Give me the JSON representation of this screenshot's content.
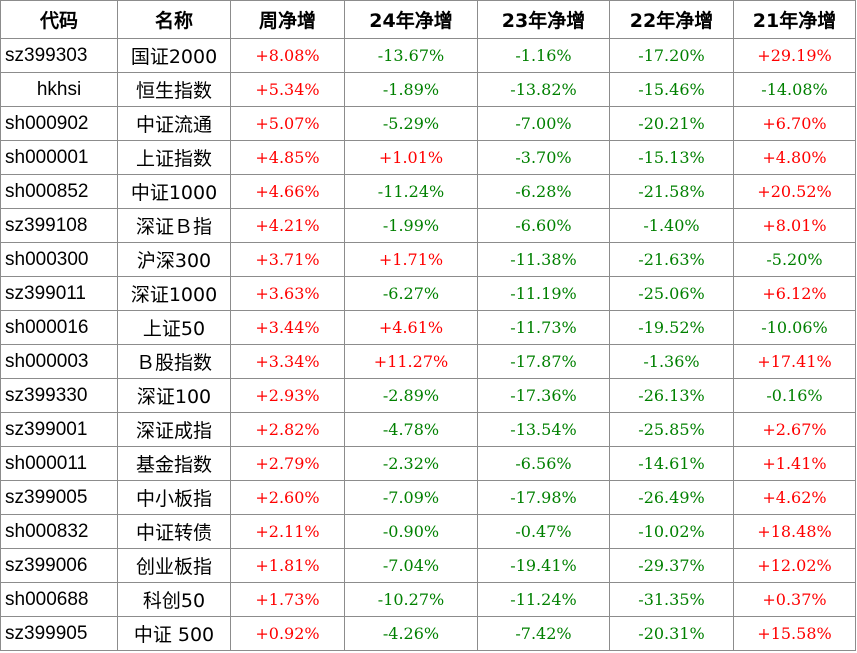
{
  "headers": [
    "代码",
    "名称",
    "周净增",
    "24年净增",
    "23年净增",
    "22年净增",
    "21年净增"
  ],
  "colors": {
    "positive": "#ff0000",
    "negative": "#008000"
  },
  "rows": [
    {
      "code": "sz399303",
      "name": "国证2000",
      "week": "+8.08%",
      "y24": "-13.67%",
      "y23": "-1.16%",
      "y22": "-17.20%",
      "y21": "+29.19%"
    },
    {
      "code": "hkhsi",
      "name": "恒生指数",
      "week": "+5.34%",
      "y24": "-1.89%",
      "y23": "-13.82%",
      "y22": "-15.46%",
      "y21": "-14.08%"
    },
    {
      "code": "sh000902",
      "name": "中证流通",
      "week": "+5.07%",
      "y24": "-5.29%",
      "y23": "-7.00%",
      "y22": "-20.21%",
      "y21": "+6.70%"
    },
    {
      "code": "sh000001",
      "name": "上证指数",
      "week": "+4.85%",
      "y24": "+1.01%",
      "y23": "-3.70%",
      "y22": "-15.13%",
      "y21": "+4.80%"
    },
    {
      "code": "sh000852",
      "name": "中证1000",
      "week": "+4.66%",
      "y24": "-11.24%",
      "y23": "-6.28%",
      "y22": "-21.58%",
      "y21": "+20.52%"
    },
    {
      "code": "sz399108",
      "name": "深证Ｂ指",
      "week": "+4.21%",
      "y24": "-1.99%",
      "y23": "-6.60%",
      "y22": "-1.40%",
      "y21": "+8.01%"
    },
    {
      "code": "sh000300",
      "name": "沪深300",
      "week": "+3.71%",
      "y24": "+1.71%",
      "y23": "-11.38%",
      "y22": "-21.63%",
      "y21": "-5.20%"
    },
    {
      "code": "sz399011",
      "name": "深证1000",
      "week": "+3.63%",
      "y24": "-6.27%",
      "y23": "-11.19%",
      "y22": "-25.06%",
      "y21": "+6.12%"
    },
    {
      "code": "sh000016",
      "name": "上证50",
      "week": "+3.44%",
      "y24": "+4.61%",
      "y23": "-11.73%",
      "y22": "-19.52%",
      "y21": "-10.06%"
    },
    {
      "code": "sh000003",
      "name": "Ｂ股指数",
      "week": "+3.34%",
      "y24": "+11.27%",
      "y23": "-17.87%",
      "y22": "-1.36%",
      "y21": "+17.41%"
    },
    {
      "code": "sz399330",
      "name": "深证100",
      "week": "+2.93%",
      "y24": "-2.89%",
      "y23": "-17.36%",
      "y22": "-26.13%",
      "y21": "-0.16%"
    },
    {
      "code": "sz399001",
      "name": "深证成指",
      "week": "+2.82%",
      "y24": "-4.78%",
      "y23": "-13.54%",
      "y22": "-25.85%",
      "y21": "+2.67%"
    },
    {
      "code": "sh000011",
      "name": "基金指数",
      "week": "+2.79%",
      "y24": "-2.32%",
      "y23": "-6.56%",
      "y22": "-14.61%",
      "y21": "+1.41%"
    },
    {
      "code": "sz399005",
      "name": "中小板指",
      "week": "+2.60%",
      "y24": "-7.09%",
      "y23": "-17.98%",
      "y22": "-26.49%",
      "y21": "+4.62%"
    },
    {
      "code": "sh000832",
      "name": "中证转债",
      "week": "+2.11%",
      "y24": "-0.90%",
      "y23": "-0.47%",
      "y22": "-10.02%",
      "y21": "+18.48%"
    },
    {
      "code": "sz399006",
      "name": "创业板指",
      "week": "+1.81%",
      "y24": "-7.04%",
      "y23": "-19.41%",
      "y22": "-29.37%",
      "y21": "+12.02%"
    },
    {
      "code": "sh000688",
      "name": "科创50",
      "week": "+1.73%",
      "y24": "-10.27%",
      "y23": "-11.24%",
      "y22": "-31.35%",
      "y21": "+0.37%"
    },
    {
      "code": "sz399905",
      "name": "中证 500",
      "week": "+0.92%",
      "y24": "-4.26%",
      "y23": "-7.42%",
      "y22": "-20.31%",
      "y21": "+15.58%"
    }
  ]
}
